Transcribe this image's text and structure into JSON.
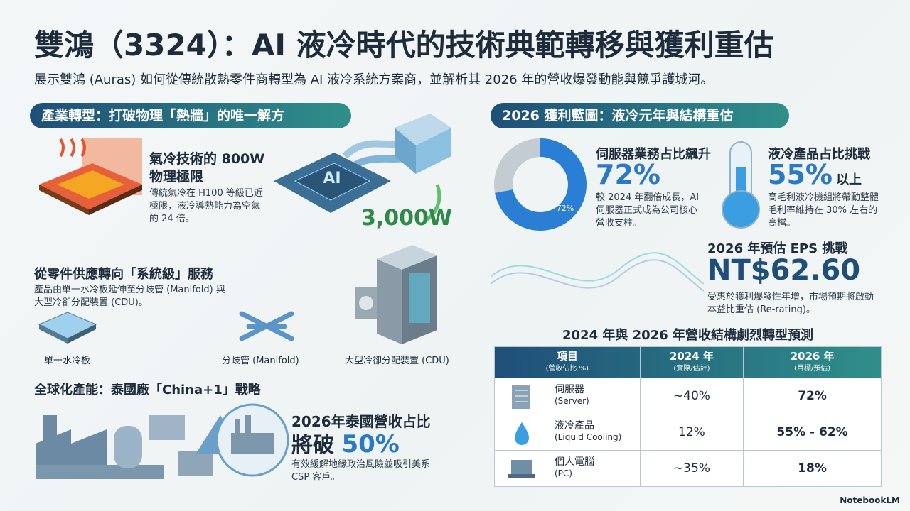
{
  "header": {
    "title": "雙鴻（3324）：AI 液冷時代的技術典範轉移與獲利重估",
    "subtitle": "展示雙鴻 (Auras) 如何從傳統散熱零件商轉型為 AI 液冷系統方案商，並解析其 2026 年的營收爆發動能與競爭護城河。"
  },
  "left": {
    "section_title": "產業轉型：打破物理「熱牆」的唯一解方",
    "air_cooling": {
      "title": "氣冷技術的 800W 物理極限",
      "body": "傳統氣冷在 H100 等級已近極限，液冷導熱能力為空氣的 24 倍。",
      "chip_label": "AI",
      "power": "3,000W"
    },
    "system": {
      "title": "從零件供應轉向「系統級」服務",
      "body": "產品由單一水冷板延伸至分歧管 (Manifold) 與大型冷卻分配裝置 (CDU)。",
      "items": [
        "單一水冷板",
        "分歧管 (Manifold)",
        "大型冷卻分配裝置 (CDU)"
      ]
    },
    "global": {
      "title": "全球化產能：泰國廠「China+1」戰略",
      "stat_title": "2026年泰國營收占比",
      "stat_prefix": "將破",
      "stat_value": "50%",
      "body": "有效緩解地緣政治風險並吸引美系 CSP 客戶。"
    }
  },
  "right": {
    "section_title": "2026 獲利藍圖：液冷元年與結構重估",
    "server_share": {
      "title": "伺服器業務占比飆升",
      "value": "72%",
      "donut": {
        "value": 72,
        "label": "72%"
      },
      "body": "較 2024 年翻倍成長，AI 伺服器正式成為公司核心營收支柱。"
    },
    "liquid_share": {
      "title": "液冷產品占比挑戰",
      "value": "55%",
      "suffix": "以上",
      "body": "高毛利液冷機組將帶動整體毛利率維持在 30% 左右的高檔。"
    },
    "eps": {
      "title": "2026 年預估 EPS 挑戰",
      "value": "NT$62.60",
      "body": "受惠於獲利爆發性年增，市場預期將啟動本益比重估 (Re-rating)。"
    },
    "table": {
      "title": "2024 年與 2026 年營收結構劇烈轉型預測",
      "headers": [
        [
          "項目",
          "(營收佔比 %)"
        ],
        [
          "2024 年",
          "(實際/估計)"
        ],
        [
          "2026 年",
          "(目標/預估)"
        ]
      ],
      "rows": [
        [
          "伺服器",
          "(Server)",
          "~40%",
          "72%"
        ],
        [
          "液冷產品",
          "(Liquid Cooling)",
          "12%",
          "55% - 62%"
        ],
        [
          "個人電腦",
          "(PC)",
          "~35%",
          "18%"
        ]
      ]
    }
  },
  "footer": {
    "brand": "NotebookLM"
  }
}
